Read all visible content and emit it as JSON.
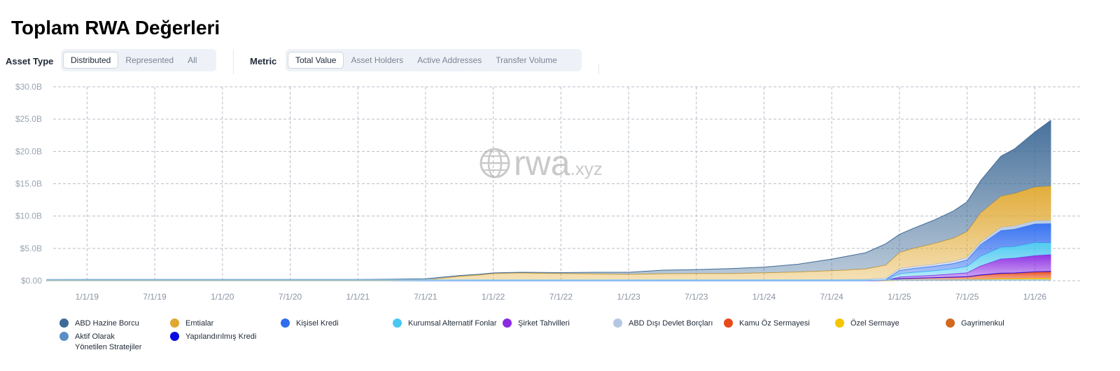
{
  "title": "Toplam RWA Değerleri",
  "filters": {
    "asset_type": {
      "label": "Asset Type",
      "options": [
        "Distributed",
        "Represented",
        "All"
      ],
      "selected": "Distributed"
    },
    "metric": {
      "label": "Metric",
      "options": [
        "Total Value",
        "Asset Holders",
        "Active Addresses",
        "Transfer Volume"
      ],
      "selected": "Total Value"
    }
  },
  "watermark": {
    "main": "rwa",
    "suffix": ".xyz",
    "icon": "globe-icon"
  },
  "chart_data": {
    "type": "area",
    "stacked": true,
    "ylim": [
      0,
      30
    ],
    "yticks": [
      "$0.00",
      "$5.0B",
      "$10.0B",
      "$15.0B",
      "$20.0B",
      "$25.0B",
      "$30.0B"
    ],
    "ytick_values": [
      0,
      5,
      10,
      15,
      20,
      25,
      30
    ],
    "xticks": [
      "1/1/19",
      "7/1/19",
      "1/1/20",
      "7/1/20",
      "1/1/21",
      "7/1/21",
      "1/1/22",
      "7/1/22",
      "1/1/23",
      "7/1/23",
      "1/1/24",
      "7/1/24",
      "1/1/25",
      "7/1/25",
      "1/1/26"
    ],
    "x_unit": "year",
    "x": [
      2018.7,
      2019.0,
      2019.5,
      2020.0,
      2020.5,
      2021.0,
      2021.2,
      2021.5,
      2021.75,
      2021.9,
      2022.0,
      2022.2,
      2022.5,
      2022.75,
      2023.0,
      2023.25,
      2023.5,
      2023.75,
      2024.0,
      2024.25,
      2024.5,
      2024.75,
      2024.9,
      2025.0,
      2025.1,
      2025.25,
      2025.4,
      2025.5,
      2025.6,
      2025.75,
      2025.85,
      2026.0,
      2026.12
    ],
    "grid": true,
    "legend_position": "bottom",
    "series": [
      {
        "name": "Gayrimenkul",
        "color": "#d2691e",
        "values": [
          0,
          0,
          0,
          0,
          0,
          0,
          0,
          0,
          0,
          0,
          0,
          0,
          0,
          0,
          0,
          0,
          0,
          0,
          0,
          0,
          0,
          0,
          0,
          0.05,
          0.05,
          0.06,
          0.07,
          0.08,
          0.1,
          0.12,
          0.12,
          0.14,
          0.15
        ]
      },
      {
        "name": "Özel Sermaye",
        "color": "#f5c400",
        "values": [
          0,
          0,
          0,
          0,
          0,
          0,
          0,
          0,
          0,
          0,
          0,
          0,
          0,
          0,
          0,
          0,
          0,
          0,
          0,
          0,
          0,
          0,
          0,
          0.05,
          0.06,
          0.08,
          0.1,
          0.1,
          0.15,
          0.2,
          0.22,
          0.25,
          0.25
        ]
      },
      {
        "name": "Kamu Öz Sermayesi",
        "color": "#e84a1a",
        "values": [
          0,
          0,
          0,
          0,
          0,
          0,
          0,
          0,
          0,
          0,
          0,
          0,
          0,
          0,
          0,
          0,
          0,
          0,
          0,
          0,
          0,
          0,
          0.05,
          0.2,
          0.25,
          0.3,
          0.35,
          0.4,
          0.6,
          0.8,
          0.8,
          0.95,
          1.0
        ]
      },
      {
        "name": "Yapılandırılmış Kredi",
        "color": "#0a0ae0",
        "values": [
          0,
          0,
          0,
          0,
          0,
          0,
          0,
          0,
          0,
          0,
          0,
          0,
          0,
          0,
          0,
          0,
          0,
          0,
          0,
          0,
          0,
          0,
          0,
          0.02,
          0.02,
          0.03,
          0.03,
          0.03,
          0.04,
          0.05,
          0.05,
          0.05,
          0.05
        ]
      },
      {
        "name": "Şirket Tahvilleri",
        "color": "#8a2be2",
        "values": [
          0,
          0,
          0,
          0,
          0,
          0,
          0,
          0,
          0,
          0,
          0,
          0,
          0,
          0,
          0,
          0,
          0,
          0,
          0,
          0,
          0,
          0,
          0.02,
          0.25,
          0.3,
          0.35,
          0.5,
          0.6,
          1.4,
          2.2,
          2.3,
          2.5,
          2.6
        ]
      },
      {
        "name": "Kurumsal Alternatif Fonlar",
        "color": "#48c8f0",
        "values": [
          0,
          0,
          0,
          0,
          0,
          0,
          0,
          0,
          0,
          0,
          0,
          0,
          0,
          0,
          0,
          0,
          0,
          0,
          0,
          0,
          0,
          0.02,
          0.05,
          0.5,
          0.6,
          0.7,
          0.8,
          1.0,
          1.5,
          1.8,
          1.8,
          2.0,
          1.8
        ]
      },
      {
        "name": "Kişisel Kredi",
        "color": "#2f6df0",
        "values": [
          0,
          0,
          0,
          0,
          0,
          0,
          0,
          0,
          0,
          0,
          0,
          0,
          0,
          0,
          0,
          0,
          0,
          0,
          0,
          0,
          0,
          0,
          0.05,
          0.5,
          0.6,
          0.7,
          0.8,
          1.0,
          1.8,
          2.6,
          2.7,
          2.9,
          3.0
        ]
      },
      {
        "name": "Aktif Olarak Yönetilen Stratejiler",
        "color": "#5a8fc4",
        "values": [
          0,
          0,
          0,
          0,
          0,
          0,
          0,
          0,
          0,
          0,
          0,
          0,
          0,
          0,
          0,
          0,
          0,
          0,
          0,
          0,
          0,
          0,
          0,
          0,
          0,
          0,
          0,
          0,
          0,
          0,
          0,
          0,
          0
        ]
      },
      {
        "name": "ABD Dışı Devlet Borçları",
        "color": "#b4c8e4",
        "values": [
          0.02,
          0.02,
          0.02,
          0.02,
          0.02,
          0.02,
          0.02,
          0.05,
          0.08,
          0.1,
          0.1,
          0.1,
          0.1,
          0.1,
          0.1,
          0.12,
          0.12,
          0.12,
          0.15,
          0.15,
          0.15,
          0.2,
          0.25,
          0.3,
          0.3,
          0.3,
          0.35,
          0.4,
          0.4,
          0.5,
          0.5,
          0.5,
          0.5
        ]
      },
      {
        "name": "Emtialar",
        "color": "#e0a830",
        "values": [
          0,
          0,
          0,
          0,
          0,
          0,
          0,
          0.05,
          0.6,
          0.8,
          1.0,
          1.1,
          1.0,
          0.95,
          0.9,
          0.95,
          1.0,
          1.0,
          1.05,
          1.2,
          1.4,
          1.6,
          2.0,
          2.5,
          2.8,
          3.2,
          3.6,
          4.0,
          4.5,
          4.8,
          5.0,
          5.2,
          5.3
        ]
      },
      {
        "name": "ABD Hazine Borcu",
        "color": "#3e6a96",
        "values": [
          0.15,
          0.18,
          0.18,
          0.18,
          0.18,
          0.18,
          0.2,
          0.2,
          0.12,
          0.1,
          0.1,
          0.1,
          0.15,
          0.25,
          0.3,
          0.55,
          0.6,
          0.75,
          0.9,
          1.2,
          1.8,
          2.5,
          3.3,
          2.8,
          3.1,
          3.6,
          4.2,
          4.6,
          5.0,
          6.2,
          6.9,
          8.5,
          10.2
        ]
      }
    ],
    "legend_order": [
      "ABD Hazine Borcu",
      "Emtialar",
      "Kişisel Kredi",
      "Kurumsal Alternatif Fonlar",
      "Şirket Tahvilleri",
      "ABD Dışı Devlet Borçları",
      "Kamu Öz Sermayesi",
      "Özel Sermaye",
      "Gayrimenkul",
      "Aktif Olarak Yönetilen Stratejiler",
      "Yapılandırılmış Kredi"
    ]
  }
}
